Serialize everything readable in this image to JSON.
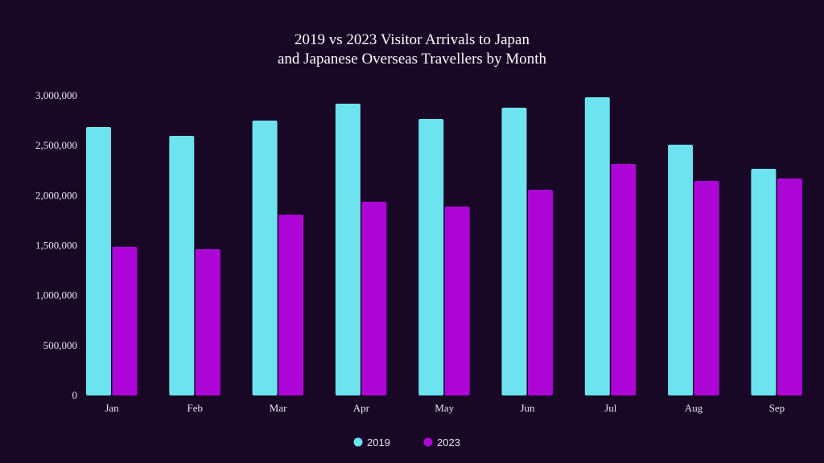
{
  "chart_data": {
    "type": "bar",
    "title_lines": [
      "2019 vs 2023 Visitor Arrivals to Japan",
      "and Japanese Overseas Travellers by Month"
    ],
    "categories": [
      "Jan",
      "Feb",
      "Mar",
      "Apr",
      "May",
      "Jun",
      "Jul",
      "Aug",
      "Sep"
    ],
    "series": [
      {
        "name": "2019",
        "color": "#6ce3ef",
        "values": [
          2686000,
          2598000,
          2751000,
          2920000,
          2767000,
          2879000,
          2984000,
          2509000,
          2268000
        ]
      },
      {
        "name": "2023",
        "color": "#ad05d6",
        "values": [
          1488000,
          1464000,
          1810000,
          1938000,
          1890000,
          2059000,
          2316000,
          2147000,
          2172000
        ]
      }
    ],
    "ylim": [
      0,
      3000000
    ],
    "yticks": [
      "0",
      "500,000",
      "1,000,000",
      "1,500,000",
      "2,000,000",
      "2,500,000",
      "3,000,000"
    ],
    "grid": false,
    "legend": "bottom",
    "xlabel": "",
    "ylabel": ""
  }
}
